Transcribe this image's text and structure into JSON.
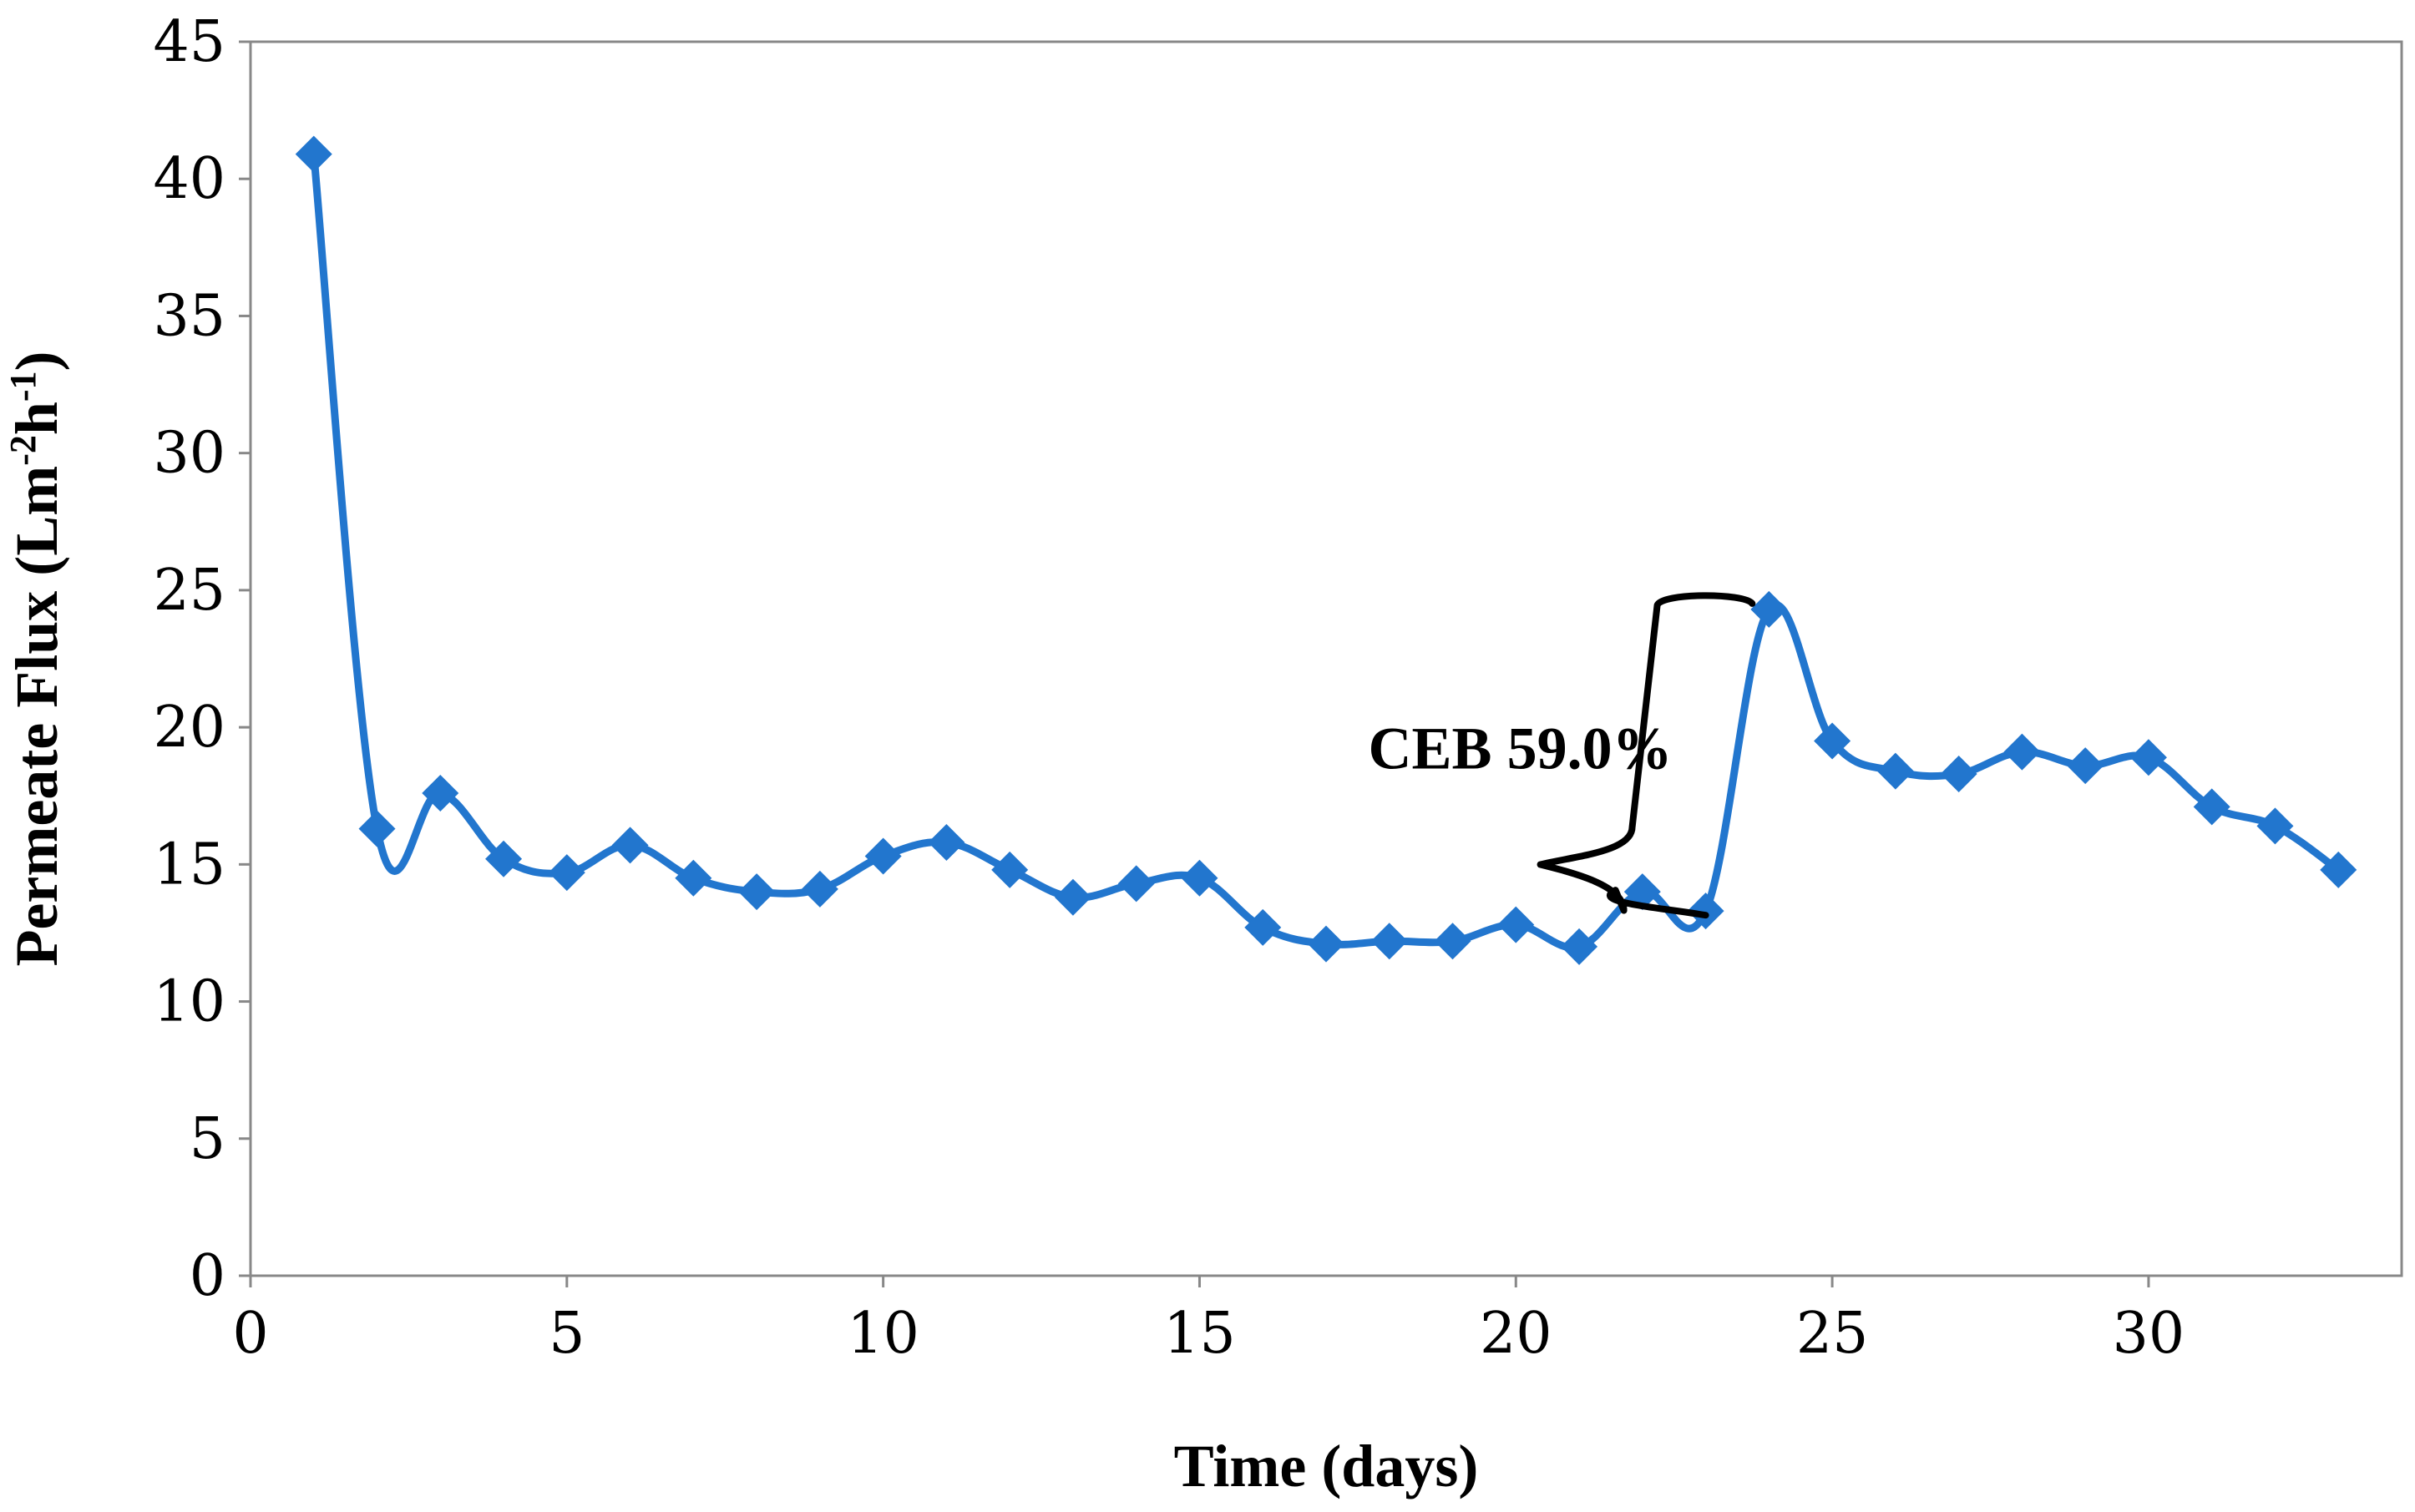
{
  "chart_data": {
    "type": "line",
    "title": "",
    "xlabel": "Time (days)",
    "ylabel": {
      "main": "Permeate Flux (Lm",
      "sup1": "-2",
      "mid": "h",
      "sup2": "-1",
      "end": ")"
    },
    "xlim": [
      0,
      34
    ],
    "ylim": [
      0,
      45
    ],
    "x_ticks": [
      0,
      5,
      10,
      15,
      20,
      25,
      30
    ],
    "y_ticks": [
      0,
      5,
      10,
      15,
      20,
      25,
      30,
      35,
      40,
      45
    ],
    "grid": false,
    "legend": "none",
    "series": [
      {
        "name": "Permeate Flux",
        "color": "#2276CE",
        "marker": "diamond",
        "smooth": true,
        "x": [
          1,
          2,
          3,
          4,
          5,
          6,
          7,
          8,
          9,
          10,
          11,
          12,
          13,
          14,
          15,
          16,
          17,
          18,
          19,
          20,
          21,
          22,
          23,
          24,
          25,
          26,
          27,
          28,
          29,
          30,
          31,
          32,
          33
        ],
        "y": [
          40.9,
          16.3,
          17.6,
          15.2,
          14.7,
          15.7,
          14.5,
          14.0,
          14.1,
          15.3,
          15.8,
          14.8,
          13.8,
          14.3,
          14.5,
          12.7,
          12.1,
          12.2,
          12.2,
          12.8,
          12.0,
          14.0,
          13.3,
          24.3,
          19.5,
          18.4,
          18.3,
          19.1,
          18.6,
          18.9,
          17.1,
          16.4,
          14.8
        ]
      }
    ],
    "annotations": [
      {
        "text": "CEB 59.0%",
        "type": "curly-brace",
        "from": {
          "x": 23,
          "y": 13.3
        },
        "to": {
          "x": 24,
          "y": 24.3
        }
      }
    ]
  }
}
